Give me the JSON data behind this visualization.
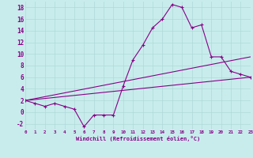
{
  "xlabel": "Windchill (Refroidissement éolien,°C)",
  "background_color": "#c8ecec",
  "grid_color": "#b0d8d8",
  "line_color": "#880088",
  "xlim": [
    0,
    23
  ],
  "ylim": [
    -3,
    19
  ],
  "xticks": [
    0,
    1,
    2,
    3,
    4,
    5,
    6,
    7,
    8,
    9,
    10,
    11,
    12,
    13,
    14,
    15,
    16,
    17,
    18,
    19,
    20,
    21,
    22,
    23
  ],
  "yticks": [
    -2,
    0,
    2,
    4,
    6,
    8,
    10,
    12,
    14,
    16,
    18
  ],
  "curve1_x": [
    0,
    1,
    2,
    3,
    4,
    5,
    6,
    7,
    8,
    9,
    10,
    11,
    12,
    13,
    14,
    15,
    16,
    17,
    18,
    19,
    20,
    21,
    22,
    23
  ],
  "curve1_y": [
    2.0,
    1.5,
    1.0,
    1.5,
    1.0,
    0.5,
    -2.5,
    -0.5,
    -0.5,
    -0.5,
    4.5,
    9.0,
    11.5,
    14.5,
    16.0,
    18.5,
    18.0,
    14.5,
    15.0,
    9.5,
    9.5,
    7.0,
    6.5,
    6.0
  ],
  "curve2_x": [
    0,
    23
  ],
  "curve2_y": [
    2.0,
    9.5
  ],
  "curve3_x": [
    0,
    23
  ],
  "curve3_y": [
    2.0,
    6.0
  ]
}
